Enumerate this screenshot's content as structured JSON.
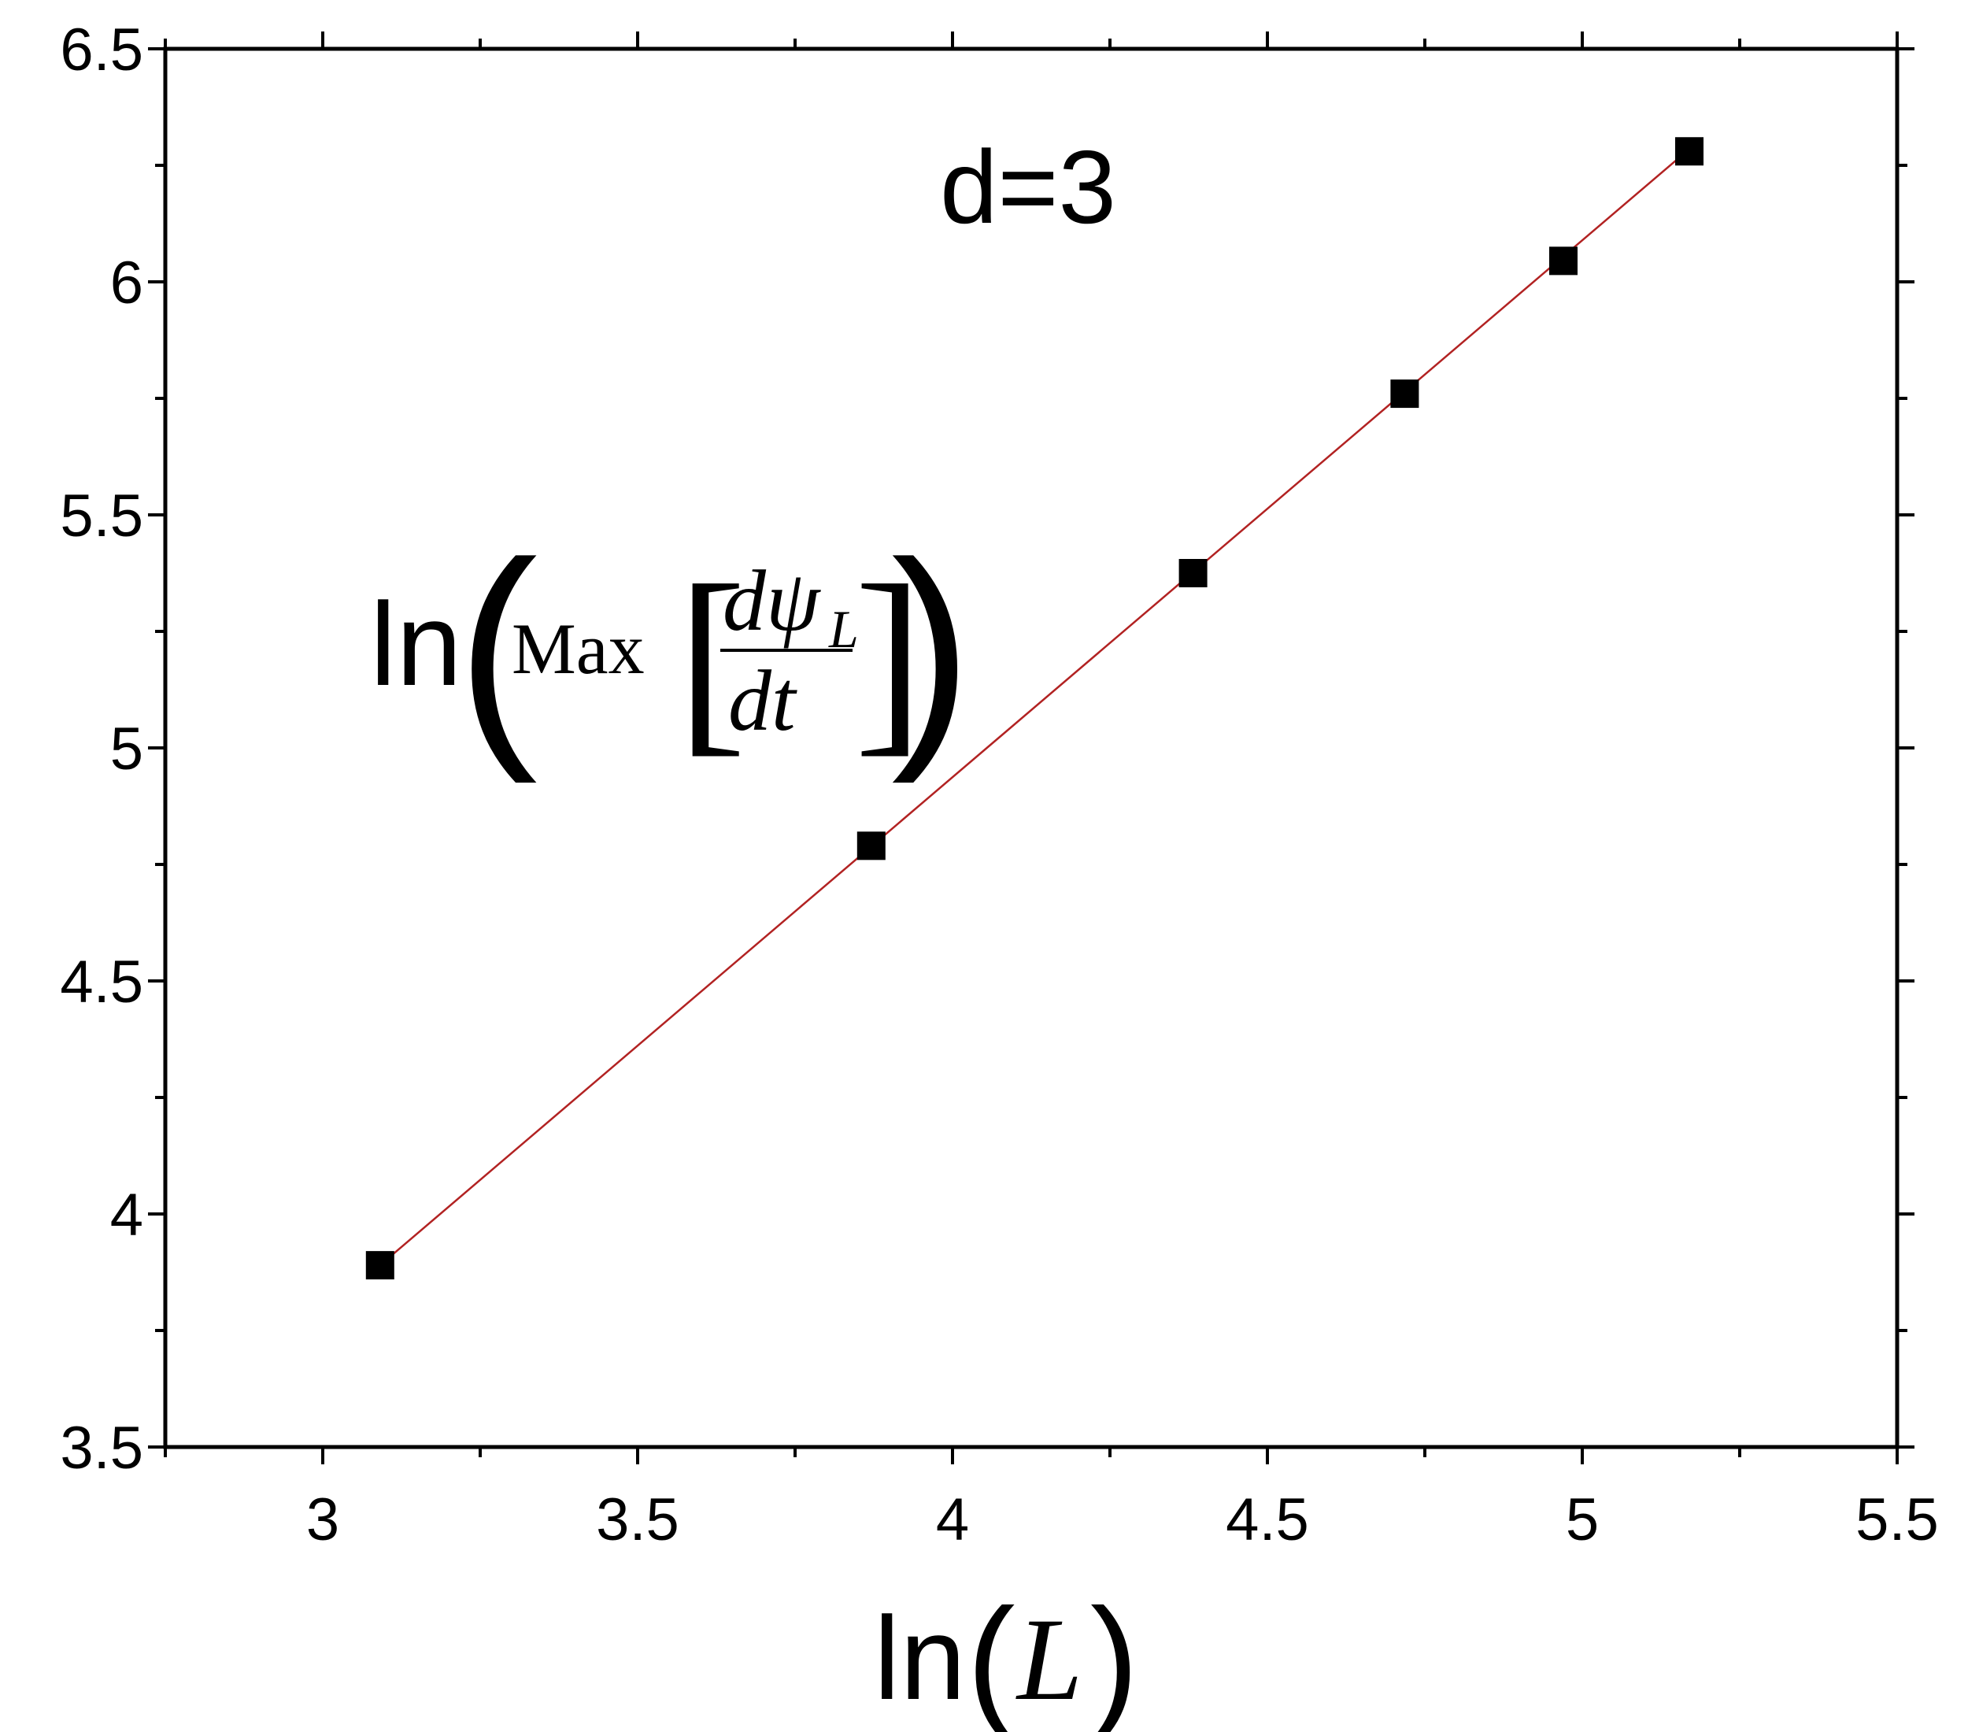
{
  "chart_data": {
    "type": "scatter",
    "title": "",
    "xlabel": {
      "prefix": "ln",
      "open": "(",
      "var": "L",
      "close": ")"
    },
    "ylabel": "",
    "xlim": [
      2.75,
      5.5
    ],
    "ylim": [
      3.5,
      6.5
    ],
    "x_ticks": [
      3,
      3.5,
      4,
      4.5,
      5,
      5.5
    ],
    "x_tick_labels": [
      "3",
      "3.5",
      "4",
      "4.5",
      "5",
      "5.5"
    ],
    "y_ticks": [
      3.5,
      4,
      4.5,
      5,
      5.5,
      6,
      6.5
    ],
    "y_tick_labels": [
      "3.5",
      "4",
      "4.5",
      "5",
      "5.5",
      "6",
      "6.5"
    ],
    "grid": false,
    "series": [
      {
        "marker": "square",
        "color": "#000000",
        "x": [
          3.091,
          3.871,
          4.382,
          4.718,
          4.97,
          5.17
        ],
        "y": [
          3.89,
          4.79,
          5.375,
          5.76,
          6.045,
          6.28
        ]
      }
    ],
    "fit_line": {
      "color": "#b22222",
      "x": [
        3.091,
        5.17
      ],
      "y": [
        3.89,
        6.285
      ]
    },
    "annotations": {
      "dimension": "d=3",
      "ylabel_formula": {
        "prefix": "ln",
        "open_paren": "(",
        "func": "Max",
        "open_bracket": "[",
        "numerator": "dψ",
        "numerator_sub": "L",
        "denominator": "dt",
        "close_bracket": "]",
        "close_paren": ")"
      }
    }
  }
}
